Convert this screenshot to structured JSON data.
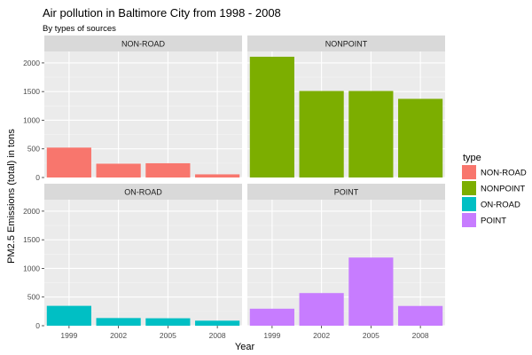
{
  "chart_data": {
    "type": "bar",
    "title": "Air pollution in Baltimore City from 1998 - 2008",
    "subtitle": "By types of sources",
    "xlabel": "Year",
    "ylabel": "PM2.5 Emissions (total) in tons",
    "categories": [
      "1999",
      "2002",
      "2005",
      "2008"
    ],
    "ylim": [
      0,
      2200
    ],
    "yticks": [
      0,
      500,
      1000,
      1500,
      2000
    ],
    "grid": true,
    "legend": {
      "title": "type",
      "position": "right",
      "entries": [
        "NON-ROAD",
        "NONPOINT",
        "ON-ROAD",
        "POINT"
      ]
    },
    "panels": [
      {
        "name": "NON-ROAD",
        "color": "#F8766D",
        "values": [
          522,
          241,
          249,
          55
        ]
      },
      {
        "name": "NONPOINT",
        "color": "#7CAE00",
        "values": [
          2108,
          1510,
          1510,
          1373
        ]
      },
      {
        "name": "ON-ROAD",
        "color": "#00BFC4",
        "values": [
          347,
          134,
          130,
          88
        ]
      },
      {
        "name": "POINT",
        "color": "#C77CFF",
        "values": [
          297,
          570,
          1190,
          345
        ]
      }
    ]
  }
}
